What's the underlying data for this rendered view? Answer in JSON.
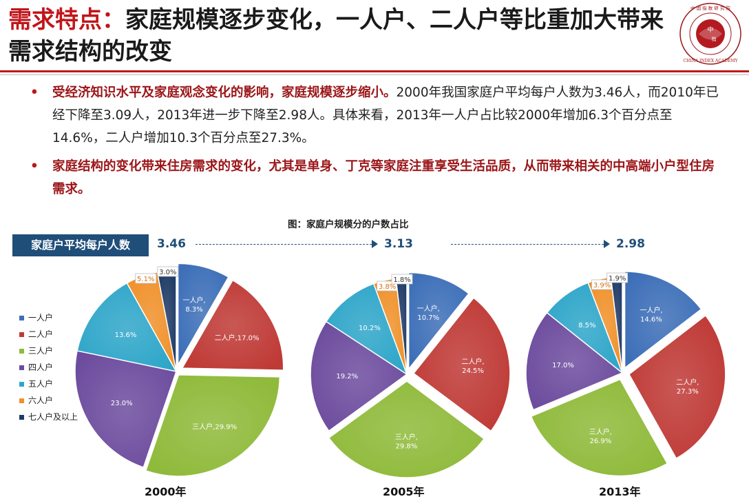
{
  "title": {
    "accent": "需求特点：",
    "main": "家庭规模逐步变化，一人户、二人户等比重加大带来需求结构的改变"
  },
  "logo": {
    "center_text": "中 指",
    "ring_text": "中国指数研究院 · CHINA INDEX ACADEMY"
  },
  "bullets": [
    {
      "dot": "•",
      "lead": "受经济知识水平及家庭观念变化的影响，家庭规模逐步缩小。",
      "text": "2000年我国家庭户平均每户人数为3.46人，而2010年已经下降至3.09人，2013年进一步下降至2.98人。具体来看，2013年一人户占比较2000年增加6.3个百分点至14.6%，二人户增加10.3个百分点至27.3%。"
    },
    {
      "dot": "•",
      "lead": "家庭结构的变化带来住房需求的变化，尤其是单身、丁克等家庭注重享受生活品质，从而带来相关的中高端小户型住房需求。",
      "text": ""
    }
  ],
  "chart_title": "图：家庭户规模分的户数占比",
  "avg": {
    "label": "家庭户平均每户人数",
    "values": [
      "3.46",
      "3.13",
      "2.98"
    ]
  },
  "colors": [
    "#3d6fb8",
    "#bf3a36",
    "#8fba3a",
    "#6d4c9e",
    "#2fa6c9",
    "#f0912b",
    "#1f3b66"
  ],
  "chart_data": [
    {
      "type": "pie",
      "title": "2000年",
      "categories": [
        "一人户",
        "二人户",
        "三人户",
        "四人户",
        "五人户",
        "六人户",
        "七人户及以上"
      ],
      "values": [
        8.3,
        17.0,
        29.9,
        23.0,
        13.6,
        5.1,
        3.0
      ],
      "labels": [
        "一人户,\n8.3%",
        "二人户,17.0%",
        "三人户,29.9%",
        "23.0%",
        "13.6%",
        "5.1%",
        "3.0%"
      ],
      "legend": "left"
    },
    {
      "type": "pie",
      "title": "2005年",
      "categories": [
        "一人户",
        "二人户",
        "三人户",
        "四人户",
        "五人户",
        "六人户",
        "七人户及以上"
      ],
      "values": [
        10.7,
        24.5,
        29.8,
        19.2,
        10.2,
        3.8,
        1.8
      ],
      "labels": [
        "一人户,\n10.7%",
        "二人户,\n24.5%",
        "三人户,\n29.8%",
        "19.2%",
        "10.2%",
        "3.8%",
        "1.8%"
      ]
    },
    {
      "type": "pie",
      "title": "2013年",
      "categories": [
        "一人户",
        "二人户",
        "三人户",
        "四人户",
        "五人户",
        "六人户",
        "七人户及以上"
      ],
      "values": [
        14.6,
        27.3,
        26.9,
        17.0,
        8.5,
        3.9,
        1.9
      ],
      "labels": [
        "一人户,\n14.6%",
        "二人户,\n27.3%",
        "三人户,\n26.9%",
        "17.0%",
        "8.5%",
        "3.9%",
        "1.9%"
      ]
    }
  ]
}
